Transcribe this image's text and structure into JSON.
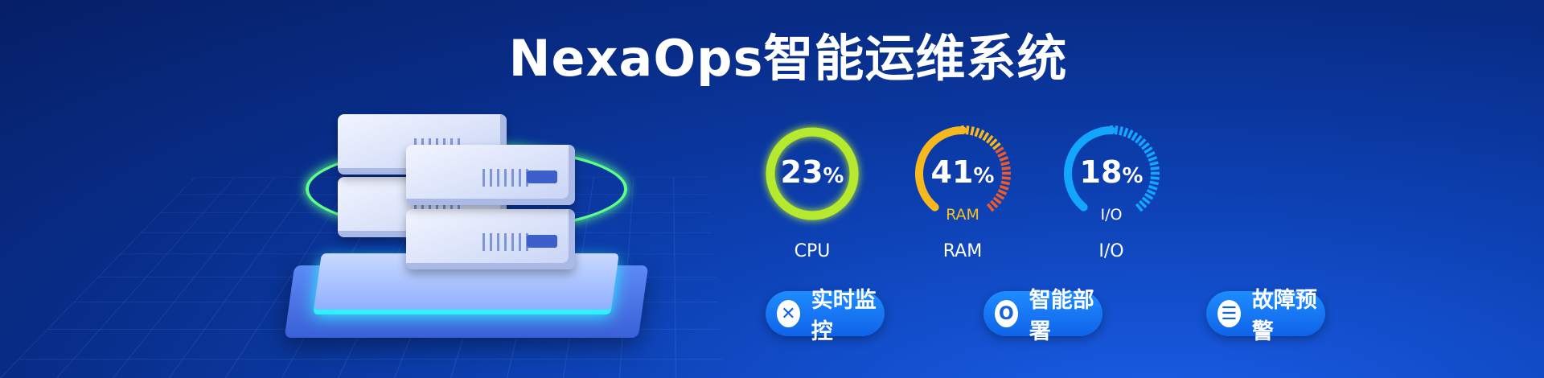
{
  "title": "NexaOps智能运维系统",
  "gauges": [
    {
      "key": "cpu",
      "value": "23",
      "unit": "%",
      "percent": 23,
      "label": "CPU",
      "inner_label": "",
      "color": "#b6ea2f"
    },
    {
      "key": "ram",
      "value": "41",
      "unit": "%",
      "percent": 41,
      "label": "RAM",
      "inner_label": "RAM",
      "color": "#f6b81c",
      "accent": "#ef5a2a"
    },
    {
      "key": "io",
      "value": "18",
      "unit": "%",
      "percent": 18,
      "label": "I/O",
      "inner_label": "I/O",
      "color": "#13a6ff"
    }
  ],
  "buttons": [
    {
      "label": "实时监控",
      "icon": "cross-icon"
    },
    {
      "label": "智能部署",
      "icon": "ring-icon"
    },
    {
      "label": "故障预警",
      "icon": "list-icon"
    }
  ]
}
